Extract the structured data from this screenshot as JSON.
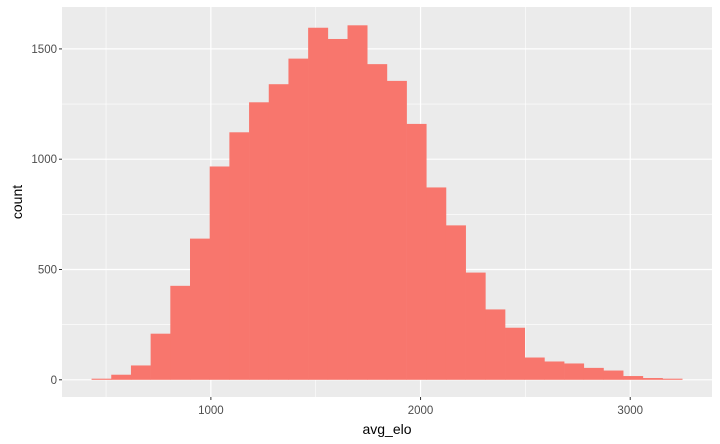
{
  "chart_data": {
    "type": "bar",
    "subtype": "histogram",
    "title": "",
    "xlabel": "avg_elo",
    "ylabel": "count",
    "bin_start": 431,
    "bin_width": 93.9,
    "values": [
      5,
      23,
      65,
      209,
      426,
      640,
      967,
      1122,
      1258,
      1340,
      1456,
      1596,
      1545,
      1607,
      1431,
      1355,
      1160,
      872,
      700,
      486,
      319,
      236,
      101,
      83,
      74,
      54,
      42,
      17,
      8,
      5
    ],
    "xlim": [
      290,
      3390
    ],
    "ylim": [
      -78,
      1690
    ],
    "x_ticks": [
      "1000",
      "2000",
      "3000"
    ],
    "x_tick_values": [
      1000,
      2000,
      3000
    ],
    "y_ticks": [
      "0",
      "500",
      "1000",
      "1500"
    ],
    "y_tick_values": [
      0,
      500,
      1000,
      1500
    ],
    "grid": true,
    "fill_color": "#F8766D",
    "panel_color": "#EBEBEB"
  }
}
